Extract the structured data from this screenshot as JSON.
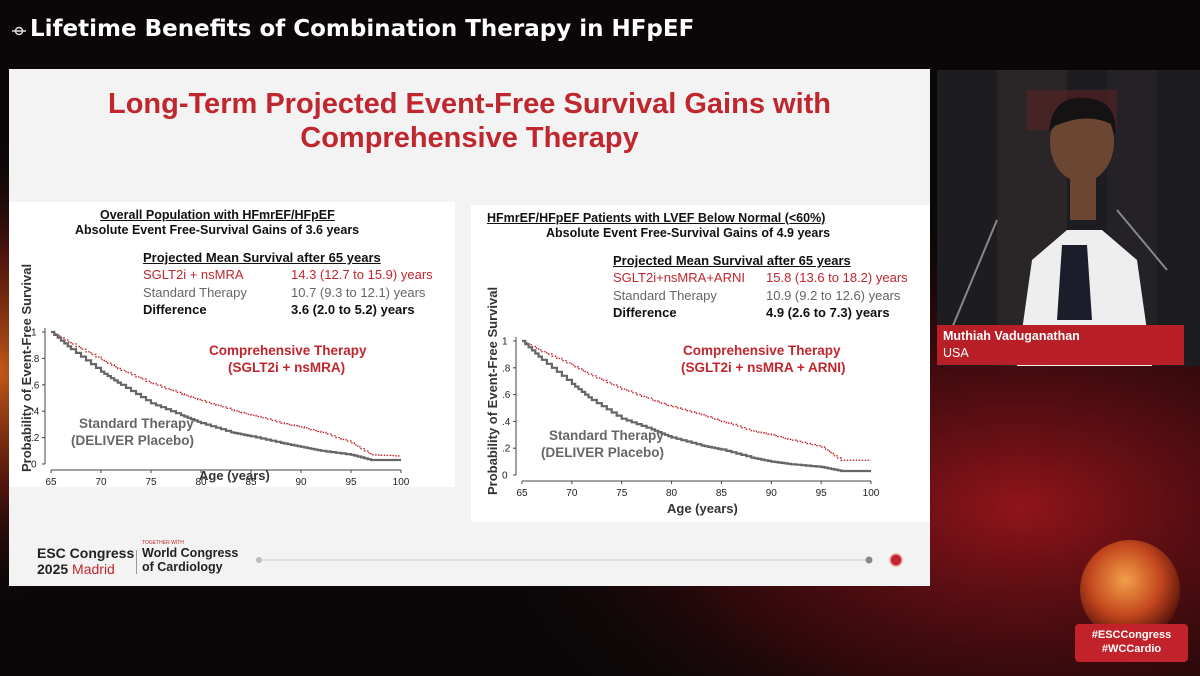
{
  "header": {
    "title": "Lifetime Benefits of Combination Therapy in HFpEF"
  },
  "slide": {
    "title_line1": "Long-Term Projected Event-Free Survival Gains with",
    "title_line2": "Comprehensive Therapy"
  },
  "left_panel": {
    "title": "Overall Population with HFmrEF/HFpEF",
    "subtitle": "Absolute Event Free-Survival Gains of 3.6 years",
    "table_header": "Projected Mean Survival after 65 years",
    "rows": [
      {
        "label": "SGLT2i + nsMRA",
        "value": "14.3 (12.7 to 15.9) years"
      },
      {
        "label": "Standard Therapy",
        "value": "10.7 (9.3 to 12.1) years"
      },
      {
        "label": "Difference",
        "value": "3.6 (2.0 to 5.2) years"
      }
    ],
    "comp_label1": "Comprehensive Therapy",
    "comp_label2": "(SGLT2i + nsMRA)",
    "std_label1": "Standard Therapy",
    "std_label2": "(DELIVER Placebo)"
  },
  "right_panel": {
    "title": "HFmrEF/HFpEF Patients with LVEF Below Normal (<60%)",
    "subtitle": "Absolute Event Free-Survival Gains of 4.9 years",
    "table_header": "Projected Mean Survival after 65 years",
    "rows": [
      {
        "label": "SGLT2i+nsMRA+ARNI",
        "value": "15.8 (13.6 to 18.2) years"
      },
      {
        "label": "Standard Therapy",
        "value": "10.9 (9.2 to 12.6) years"
      },
      {
        "label": "Difference",
        "value": "4.9 (2.6 to 7.3) years"
      }
    ],
    "comp_label1": "Comprehensive Therapy",
    "comp_label2": "(SGLT2i + nsMRA + ARNI)",
    "std_label1": "Standard Therapy",
    "std_label2": "(DELIVER Placebo)"
  },
  "chart_data": [
    {
      "type": "line",
      "ylabel": "Probability of Event-Free Survival",
      "xlabel": "Age (years)",
      "x_ticks": [
        "65",
        "70",
        "75",
        "80",
        "85",
        "90",
        "95",
        "100"
      ],
      "y_ticks": [
        "1",
        ".8",
        ".6",
        ".4",
        ".2",
        "0"
      ],
      "xlim": [
        65,
        100
      ],
      "ylim": [
        0,
        1
      ],
      "series": [
        {
          "name": "Comprehensive Therapy (SGLT2i + nsMRA)",
          "color": "#c0262d",
          "style": "dotted",
          "x": [
            65,
            67,
            70,
            72,
            75,
            78,
            80,
            83,
            85,
            88,
            90,
            92,
            95,
            97,
            100
          ],
          "y": [
            1,
            0.91,
            0.79,
            0.71,
            0.61,
            0.53,
            0.48,
            0.41,
            0.37,
            0.31,
            0.28,
            0.24,
            0.16,
            0.07,
            0.06
          ]
        },
        {
          "name": "Standard Therapy (DELIVER Placebo)",
          "color": "#666666",
          "style": "solid",
          "x": [
            65,
            67,
            70,
            72,
            75,
            78,
            80,
            83,
            85,
            88,
            90,
            92,
            95,
            97,
            100
          ],
          "y": [
            1,
            0.87,
            0.7,
            0.6,
            0.46,
            0.37,
            0.31,
            0.24,
            0.21,
            0.16,
            0.13,
            0.1,
            0.07,
            0.03,
            0.03
          ]
        }
      ]
    },
    {
      "type": "line",
      "ylabel": "Probability of Event-Free Survival",
      "xlabel": "Age (years)",
      "x_ticks": [
        "65",
        "70",
        "75",
        "80",
        "85",
        "90",
        "95",
        "100"
      ],
      "y_ticks": [
        "1",
        ".8",
        ".6",
        ".4",
        ".2",
        "0"
      ],
      "xlim": [
        65,
        100
      ],
      "ylim": [
        0,
        1
      ],
      "series": [
        {
          "name": "Comprehensive Therapy (SGLT2i + nsMRA + ARNI)",
          "color": "#c0262d",
          "style": "dotted",
          "x": [
            65,
            67,
            70,
            72,
            75,
            78,
            80,
            83,
            85,
            88,
            90,
            92,
            95,
            97,
            100
          ],
          "y": [
            1,
            0.92,
            0.82,
            0.74,
            0.64,
            0.56,
            0.51,
            0.45,
            0.4,
            0.33,
            0.3,
            0.26,
            0.21,
            0.11,
            0.11
          ]
        },
        {
          "name": "Standard Therapy (DELIVER Placebo)",
          "color": "#666666",
          "style": "solid",
          "x": [
            65,
            67,
            70,
            72,
            75,
            78,
            80,
            83,
            85,
            88,
            90,
            92,
            95,
            97,
            100
          ],
          "y": [
            1,
            0.86,
            0.68,
            0.56,
            0.42,
            0.34,
            0.28,
            0.22,
            0.19,
            0.13,
            0.1,
            0.08,
            0.06,
            0.03,
            0.03
          ]
        }
      ]
    }
  ],
  "footer": {
    "congress_line1": "ESC Congress",
    "congress_year": "2025",
    "congress_city": "Madrid",
    "together_with": "TOGETHER WITH",
    "wcc_line1": "World Congress",
    "wcc_line2": "of Cardiology"
  },
  "presenter": {
    "name": "Muthiah Vaduganathan",
    "country": "USA"
  },
  "hashtags": [
    "#ESCCongress",
    "#WCCardio"
  ],
  "colors": {
    "accent_red": "#c0262d",
    "standard_gray": "#666666",
    "background": "#0b0708"
  }
}
